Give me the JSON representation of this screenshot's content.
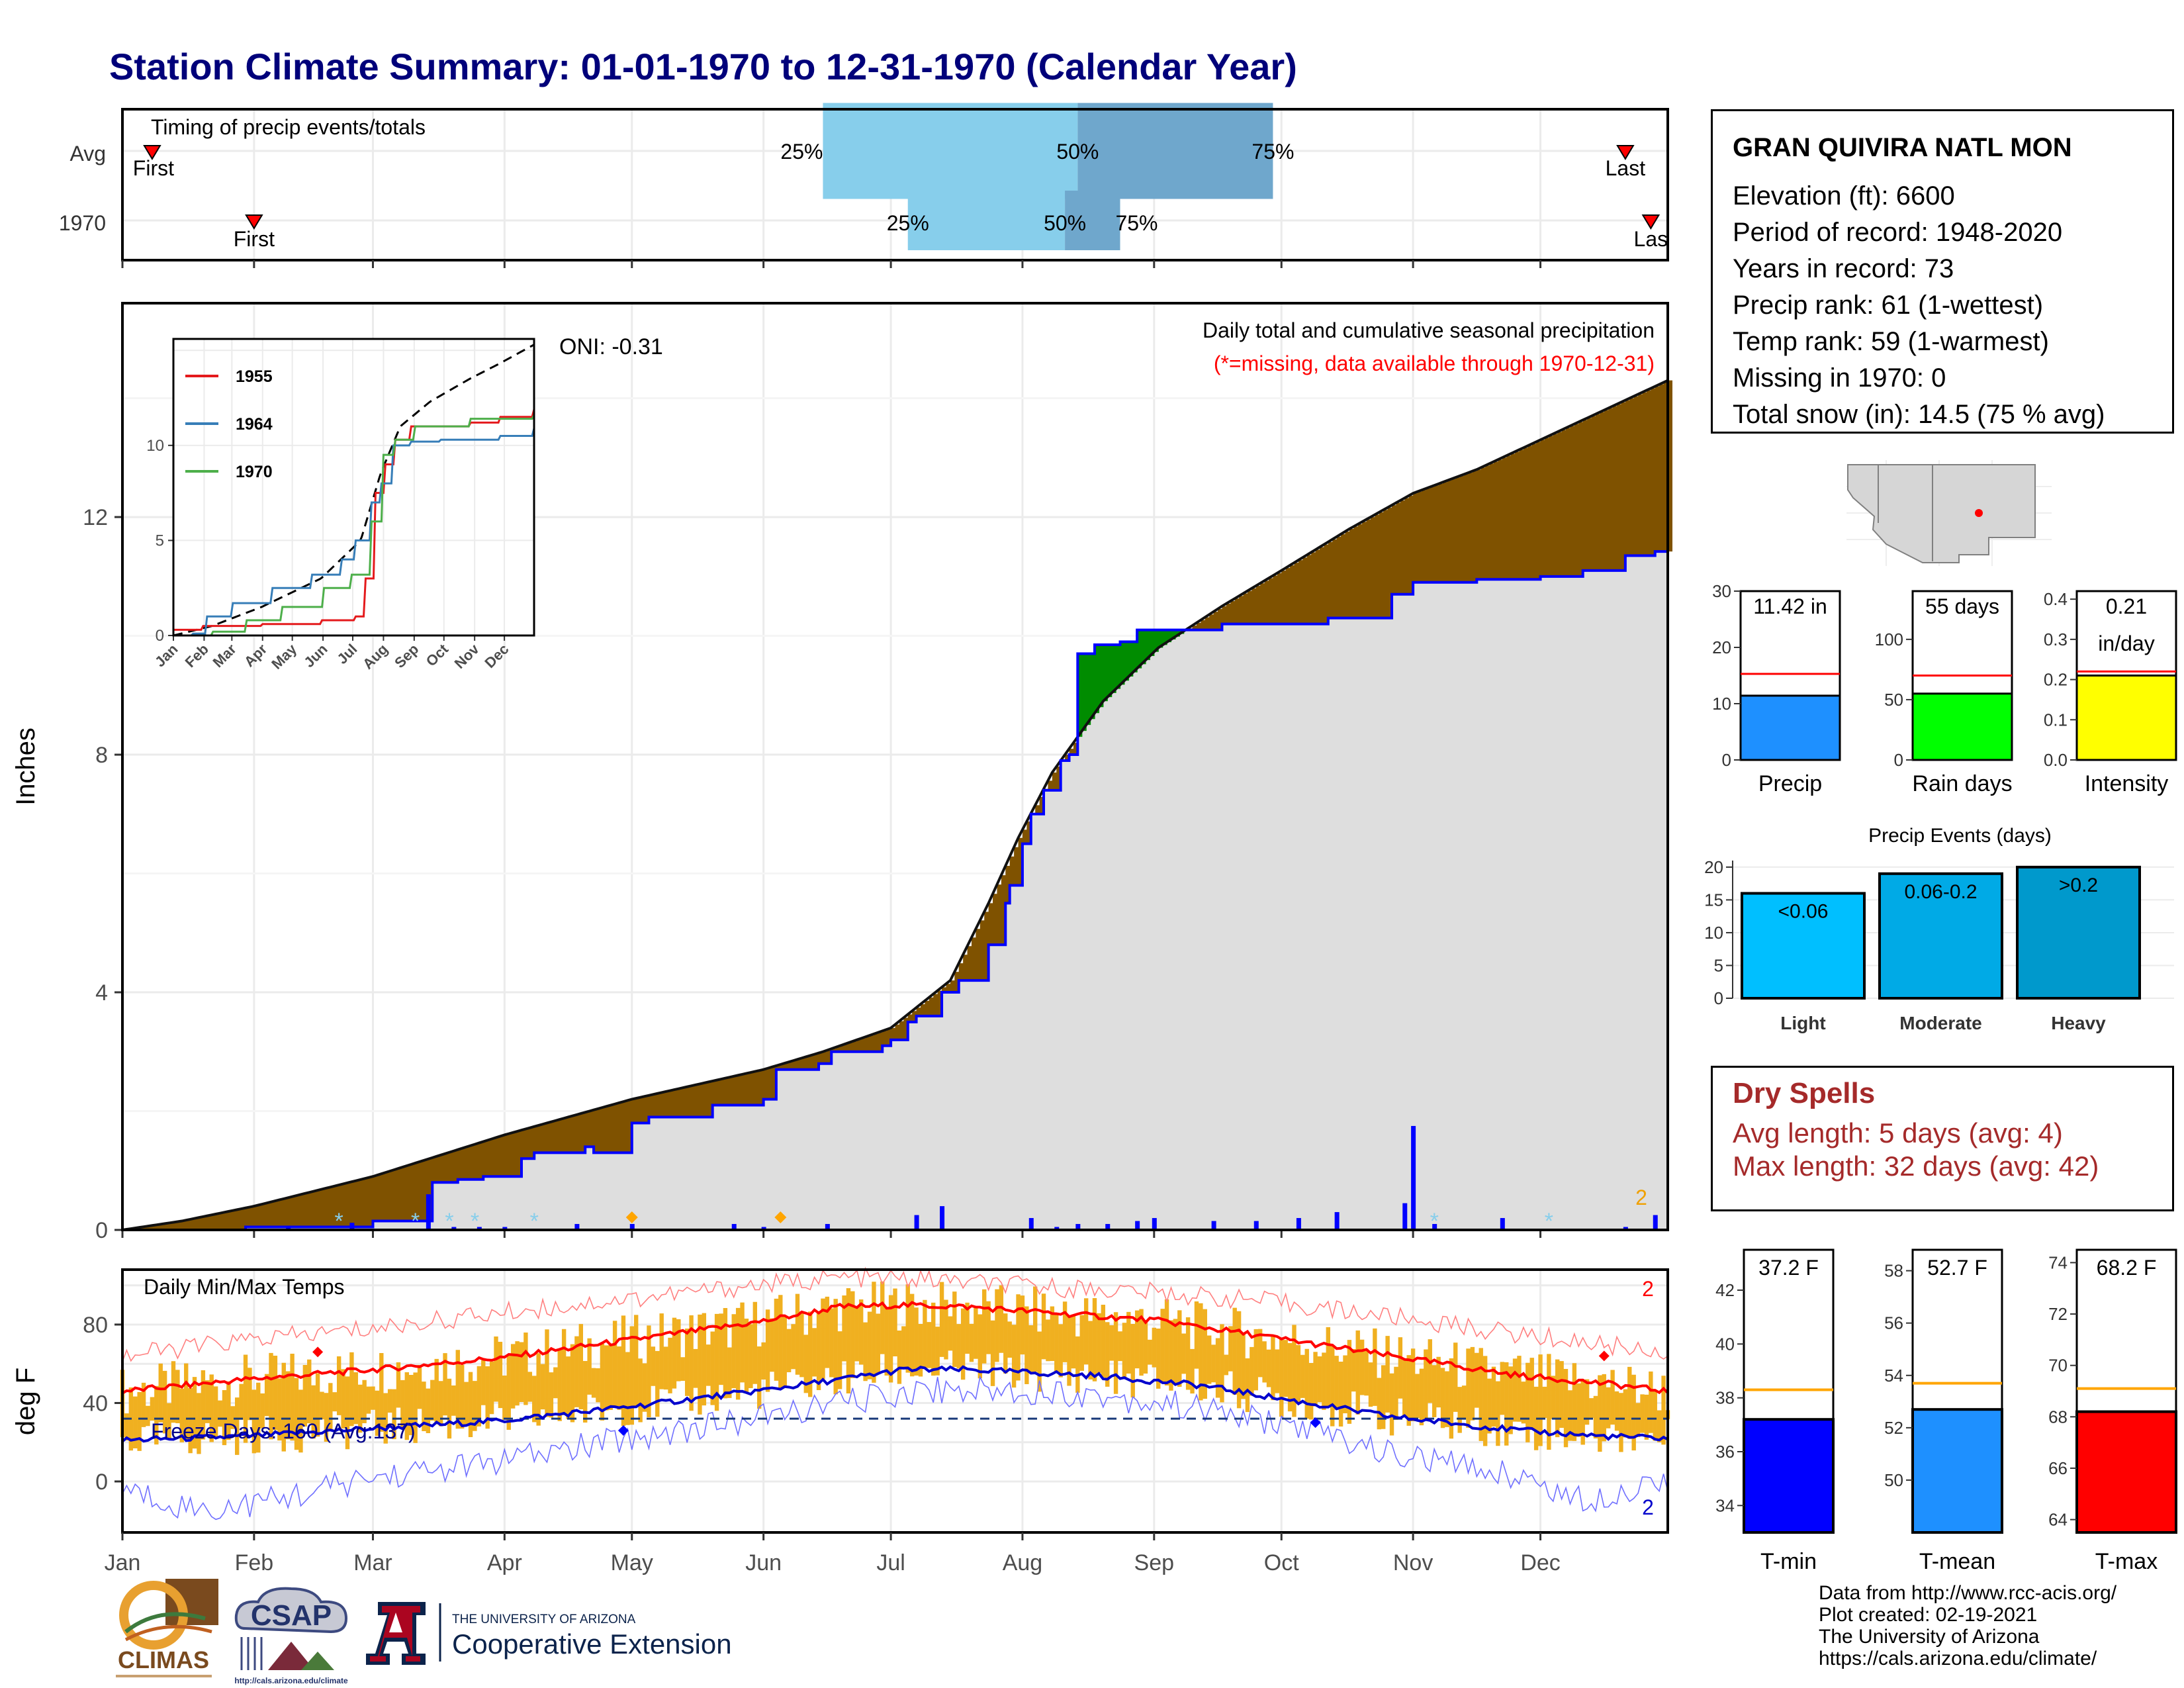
{
  "title": "Station Climate Summary: 01-01-1970 to 12-31-1970 (Calendar Year)",
  "colors": {
    "title": "#00007a",
    "brown": "#7f5200",
    "green": "#008c00",
    "gray_area": "#dedede",
    "blue": "#0000ff",
    "orange": "#f0b020",
    "light_blue": "#87ceeb",
    "mid_blue": "#6fa7cc",
    "red": "#ff0000",
    "dry": "#a52a2a"
  },
  "months": [
    "Jan",
    "Feb",
    "Mar",
    "Apr",
    "May",
    "Jun",
    "Jul",
    "Aug",
    "Sep",
    "Oct",
    "Nov",
    "Dec"
  ],
  "timing": {
    "title": "Timing of precip events/totals",
    "rows": [
      "Avg",
      "1970"
    ],
    "q25": "25%",
    "q50": "50%",
    "q75": "75%",
    "first": "First",
    "last": "Last",
    "last_clipped": "Las",
    "avg": {
      "first_doy": 8,
      "q25_doy": 166,
      "q50_doy": 226,
      "q75_doy": 272,
      "last_doy": 355
    },
    "y1970": {
      "first_doy": 32,
      "q25_doy": 186,
      "q50_doy": 223,
      "q75_doy": 236,
      "last_doy": 361
    }
  },
  "precip": {
    "ylabel": "Inches",
    "yticks": [
      "0",
      "4",
      "8",
      "12"
    ],
    "legend_line1": "Daily total and cumulative seasonal precipitation",
    "legend_line2": "(*=missing, data available through 1970-12-31)",
    "oni": "ONI: -0.31",
    "corner_label": "2",
    "ylim": [
      0,
      15.6
    ],
    "avg_cumulative": [
      [
        1,
        0
      ],
      [
        15,
        0.15
      ],
      [
        32,
        0.4
      ],
      [
        60,
        0.9
      ],
      [
        91,
        1.6
      ],
      [
        121,
        2.2
      ],
      [
        152,
        2.7
      ],
      [
        166,
        3.0
      ],
      [
        182,
        3.4
      ],
      [
        196,
        4.2
      ],
      [
        205,
        5.5
      ],
      [
        212,
        6.6
      ],
      [
        220,
        7.7
      ],
      [
        232,
        8.9
      ],
      [
        245,
        9.8
      ],
      [
        260,
        10.5
      ],
      [
        274,
        11.1
      ],
      [
        290,
        11.8
      ],
      [
        305,
        12.4
      ],
      [
        320,
        12.8
      ],
      [
        335,
        13.3
      ],
      [
        350,
        13.8
      ],
      [
        365,
        14.3
      ]
    ],
    "year_cumulative": [
      [
        1,
        0
      ],
      [
        30,
        0.05
      ],
      [
        55,
        0.05
      ],
      [
        60,
        0.15
      ],
      [
        73,
        0.15
      ],
      [
        74,
        0.8
      ],
      [
        80,
        0.85
      ],
      [
        86,
        0.9
      ],
      [
        95,
        1.2
      ],
      [
        98,
        1.3
      ],
      [
        110,
        1.4
      ],
      [
        112,
        1.3
      ],
      [
        121,
        1.8
      ],
      [
        125,
        1.9
      ],
      [
        131,
        1.9
      ],
      [
        140,
        2.1
      ],
      [
        150,
        2.1
      ],
      [
        152,
        2.2
      ],
      [
        155,
        2.7
      ],
      [
        165,
        2.8
      ],
      [
        168,
        3.0
      ],
      [
        180,
        3.1
      ],
      [
        182,
        3.2
      ],
      [
        186,
        3.5
      ],
      [
        188,
        3.6
      ],
      [
        192,
        3.6
      ],
      [
        194,
        4.0
      ],
      [
        198,
        4.2
      ],
      [
        205,
        4.8
      ],
      [
        209,
        5.5
      ],
      [
        210,
        5.8
      ],
      [
        213,
        6.5
      ],
      [
        215,
        7.0
      ],
      [
        218,
        7.4
      ],
      [
        222,
        7.9
      ],
      [
        224,
        8.0
      ],
      [
        226,
        9.7
      ],
      [
        230,
        9.85
      ],
      [
        236,
        9.9
      ],
      [
        240,
        10.1
      ],
      [
        260,
        10.2
      ],
      [
        285,
        10.3
      ],
      [
        298,
        10.3
      ],
      [
        300,
        10.7
      ],
      [
        305,
        10.9
      ],
      [
        320,
        10.95
      ],
      [
        335,
        11.0
      ],
      [
        345,
        11.1
      ],
      [
        355,
        11.35
      ],
      [
        362,
        11.42
      ],
      [
        365,
        11.42
      ]
    ],
    "daily": [
      [
        40,
        0.05
      ],
      [
        55,
        0.12
      ],
      [
        73,
        0.6
      ],
      [
        79,
        0.05
      ],
      [
        85,
        0.05
      ],
      [
        91,
        0.05
      ],
      [
        108,
        0.1
      ],
      [
        121,
        0.1
      ],
      [
        145,
        0.1
      ],
      [
        152,
        0.05
      ],
      [
        167,
        0.1
      ],
      [
        188,
        0.25
      ],
      [
        194,
        0.4
      ],
      [
        215,
        0.2
      ],
      [
        221,
        0.05
      ],
      [
        226,
        0.1
      ],
      [
        233,
        0.1
      ],
      [
        240,
        0.15
      ],
      [
        244,
        0.2
      ],
      [
        258,
        0.15
      ],
      [
        268,
        0.15
      ],
      [
        278,
        0.2
      ],
      [
        287,
        0.3
      ],
      [
        303,
        0.45
      ],
      [
        305,
        1.75
      ],
      [
        310,
        0.1
      ],
      [
        326,
        0.2
      ],
      [
        355,
        0.05
      ],
      [
        362,
        0.25
      ]
    ]
  },
  "inset": {
    "yticks": [
      "0",
      "5",
      "10"
    ],
    "series": [
      {
        "name": "1955",
        "color": "#e41a1c"
      },
      {
        "name": "1964",
        "color": "#377eb8"
      },
      {
        "name": "1970",
        "color": "#4daf4a"
      }
    ],
    "s1955": [
      [
        1,
        0.3
      ],
      [
        30,
        0.5
      ],
      [
        90,
        0.6
      ],
      [
        150,
        0.8
      ],
      [
        185,
        1.0
      ],
      [
        195,
        3.0
      ],
      [
        205,
        7.5
      ],
      [
        215,
        9.0
      ],
      [
        225,
        10.3
      ],
      [
        240,
        11.0
      ],
      [
        300,
        11.2
      ],
      [
        330,
        11.5
      ],
      [
        365,
        11.9
      ]
    ],
    "s1964": [
      [
        1,
        0
      ],
      [
        20,
        0.1
      ],
      [
        35,
        1.0
      ],
      [
        60,
        1.7
      ],
      [
        100,
        2.5
      ],
      [
        140,
        3.2
      ],
      [
        170,
        4.0
      ],
      [
        185,
        5.0
      ],
      [
        200,
        7.0
      ],
      [
        210,
        8.0
      ],
      [
        222,
        10.0
      ],
      [
        240,
        10.2
      ],
      [
        270,
        10.3
      ],
      [
        330,
        10.5
      ],
      [
        365,
        10.9
      ]
    ],
    "s1970": [
      [
        1,
        0
      ],
      [
        40,
        0.2
      ],
      [
        75,
        0.8
      ],
      [
        110,
        1.5
      ],
      [
        152,
        2.5
      ],
      [
        180,
        3.2
      ],
      [
        200,
        6.0
      ],
      [
        212,
        9.5
      ],
      [
        225,
        10.3
      ],
      [
        245,
        11.0
      ],
      [
        300,
        11.4
      ],
      [
        365,
        11.6
      ]
    ],
    "avg": [
      [
        1,
        0
      ],
      [
        40,
        0.5
      ],
      [
        90,
        1.5
      ],
      [
        150,
        3.0
      ],
      [
        190,
        5.0
      ],
      [
        210,
        8.5
      ],
      [
        230,
        11.0
      ],
      [
        260,
        12.3
      ],
      [
        300,
        13.5
      ],
      [
        330,
        14.3
      ],
      [
        365,
        15.3
      ]
    ]
  },
  "temps": {
    "ylabel": "deg F",
    "title": "Daily Min/Max Temps",
    "freeze_label": "Freeze Days: 160 (Avg:137)",
    "yticks": [
      "0",
      "40",
      "80"
    ],
    "ylim": [
      -26,
      108
    ],
    "corner_top": "2",
    "corner_bottom": "2",
    "freeze_line": 32,
    "avg_max": [
      [
        1,
        46
      ],
      [
        30,
        52
      ],
      [
        60,
        57
      ],
      [
        90,
        63
      ],
      [
        120,
        72
      ],
      [
        150,
        81
      ],
      [
        170,
        89
      ],
      [
        185,
        90
      ],
      [
        200,
        89
      ],
      [
        220,
        86
      ],
      [
        245,
        82
      ],
      [
        270,
        74
      ],
      [
        300,
        64
      ],
      [
        330,
        54
      ],
      [
        350,
        50
      ],
      [
        365,
        46
      ]
    ],
    "avg_min": [
      [
        1,
        21
      ],
      [
        30,
        23
      ],
      [
        60,
        27
      ],
      [
        90,
        31
      ],
      [
        120,
        38
      ],
      [
        150,
        46
      ],
      [
        170,
        52
      ],
      [
        185,
        57
      ],
      [
        200,
        57
      ],
      [
        230,
        54
      ],
      [
        255,
        49
      ],
      [
        280,
        40
      ],
      [
        300,
        33
      ],
      [
        330,
        26
      ],
      [
        350,
        23
      ],
      [
        365,
        22
      ]
    ],
    "rec_max": [
      [
        1,
        64
      ],
      [
        30,
        72
      ],
      [
        60,
        78
      ],
      [
        90,
        86
      ],
      [
        120,
        93
      ],
      [
        150,
        100
      ],
      [
        170,
        104
      ],
      [
        190,
        103
      ],
      [
        210,
        100
      ],
      [
        240,
        97
      ],
      [
        270,
        92
      ],
      [
        300,
        84
      ],
      [
        330,
        75
      ],
      [
        365,
        66
      ]
    ],
    "rec_min": [
      [
        1,
        -4
      ],
      [
        20,
        -15
      ],
      [
        35,
        -10
      ],
      [
        60,
        2
      ],
      [
        90,
        10
      ],
      [
        120,
        22
      ],
      [
        150,
        32
      ],
      [
        170,
        40
      ],
      [
        190,
        47
      ],
      [
        220,
        46
      ],
      [
        250,
        39
      ],
      [
        280,
        27
      ],
      [
        300,
        14
      ],
      [
        330,
        3
      ],
      [
        345,
        -10
      ],
      [
        365,
        2
      ]
    ]
  },
  "bars_top": [
    {
      "label": "Precip",
      "value_text": "11.42 in",
      "value": 11.42,
      "avg": 15.3,
      "yticks": [
        0,
        10,
        20,
        30
      ],
      "ymax": 30,
      "color": "#1e90ff"
    },
    {
      "label": "Rain days",
      "value_text": "55 days",
      "value": 55,
      "avg": 70,
      "yticks": [
        0,
        50,
        100
      ],
      "ymax": 140,
      "color": "#00ff00"
    },
    {
      "label": "Intensity",
      "value_text": "0.21",
      "value_text2": "in/day",
      "value": 0.21,
      "avg": 0.22,
      "yticks": [
        "0.0",
        "0.1",
        "0.2",
        "0.3",
        "0.4"
      ],
      "ymax": 0.42,
      "color": "#ffff00"
    }
  ],
  "events": {
    "title": "Precip Events (days)",
    "yticks": [
      "0",
      "5",
      "10",
      "15",
      "20"
    ],
    "ymax": 21,
    "bars": [
      {
        "label": "Light",
        "bin": "<0.06",
        "value": 16,
        "color": "#00bfff"
      },
      {
        "label": "Moderate",
        "bin": "0.06-0.2",
        "value": 19,
        "color": "#00aae6"
      },
      {
        "label": "Heavy",
        "bin": ">0.2",
        "value": 20,
        "color": "#0099cc"
      }
    ]
  },
  "temp_bars": [
    {
      "label": "T-min",
      "value_text": "37.2 F",
      "value": 37.2,
      "avg": 38.3,
      "ymin": 33,
      "ymax": 43.5,
      "yticks": [
        "34",
        "36",
        "38",
        "40",
        "42"
      ],
      "color": "#0000ff"
    },
    {
      "label": "T-mean",
      "value_text": "52.7 F",
      "value": 52.7,
      "avg": 53.7,
      "ymin": 48,
      "ymax": 58.8,
      "yticks": [
        "50",
        "52",
        "54",
        "56",
        "58"
      ],
      "color": "#1e90ff"
    },
    {
      "label": "T-max",
      "value_text": "68.2 F",
      "value": 68.2,
      "avg": 69.1,
      "ymin": 63.5,
      "ymax": 74.5,
      "yticks": [
        "64",
        "66",
        "68",
        "70",
        "72",
        "74"
      ],
      "color": "#ff0000"
    }
  ],
  "station": {
    "name": "GRAN QUIVIRA NATL MON",
    "elevation": "Elevation (ft): 6600",
    "period": "Period of record: 1948-2020",
    "years": "Years in record: 73",
    "precip_rank": "Precip rank: 61 (1-wettest)",
    "temp_rank": "Temp rank: 59 (1-warmest)",
    "missing": "Missing in 1970: 0",
    "snow": "Total snow (in): 14.5 (75 % avg)"
  },
  "dry_spells": {
    "title": "Dry Spells",
    "avg_length": "Avg length: 5 days (avg: 4)",
    "max_length": "Max length: 32 days (avg: 42)"
  },
  "credits": {
    "line1": "Data from http://www.rcc-acis.org/",
    "line2": "Plot created: 02-19-2021",
    "line3": "The University of Arizona",
    "line4": "https://cals.arizona.edu/climate/"
  },
  "logos": {
    "climas": "CLIMAS",
    "csap": "CSAP",
    "csap_url": "http://cals.arizona.edu/climate",
    "ua_small": "THE UNIVERSITY OF ARIZONA",
    "ua_big": "Cooperative Extension"
  }
}
